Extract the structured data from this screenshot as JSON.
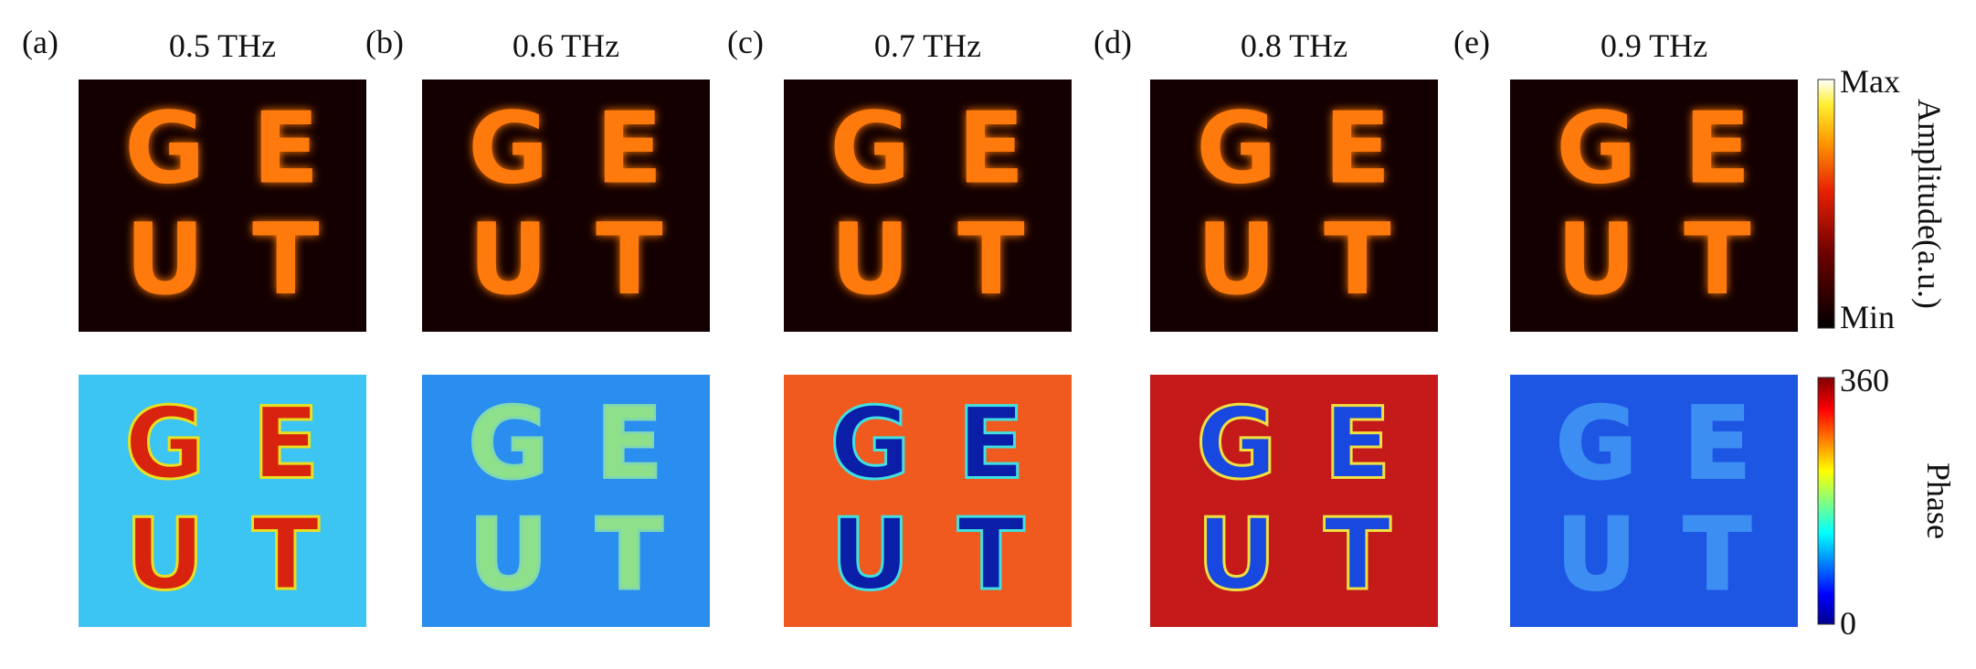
{
  "panels": [
    {
      "label": "(a)",
      "frequency": "0.5 THz",
      "phase_background": "#3cc4f2",
      "phase_letters": "#d8230f",
      "phase_outline": "#e8e020"
    },
    {
      "label": "(b)",
      "frequency": "0.6 THz",
      "phase_background": "#2a8ef0",
      "phase_letters": "#8fe08a",
      "phase_outline": "#7fd8b0"
    },
    {
      "label": "(c)",
      "frequency": "0.7 THz",
      "phase_background": "#f05a1e",
      "phase_letters": "#0a1ea8",
      "phase_outline": "#40e0e0"
    },
    {
      "label": "(d)",
      "frequency": "0.8 THz",
      "phase_background": "#c41a1a",
      "phase_letters": "#1848e0",
      "phase_outline": "#f0e040"
    },
    {
      "label": "(e)",
      "frequency": "0.9 THz",
      "phase_background": "#1e56e4",
      "phase_letters": "#3c8ef2",
      "phase_outline": "#3c8ef2"
    }
  ],
  "letters": [
    "G",
    "E",
    "U",
    "T"
  ],
  "amplitude_colorbar": {
    "max": "Max",
    "min": "Min",
    "title": "Amplitude(a.u.)"
  },
  "phase_colorbar": {
    "max": 360,
    "min": 0,
    "title": "Phase"
  }
}
